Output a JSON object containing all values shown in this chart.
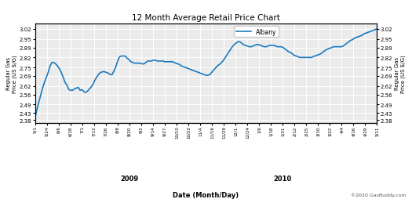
{
  "title": "12 Month Average Retail Price Chart",
  "ylabel_left": "Regular Gas\nPrice (US $/G)",
  "ylabel_right": "Regular Gas\nPrice (US $/G)",
  "xlabel": "Date (Month/Day)",
  "legend_label": "Albany",
  "watermark": "©2010 GasBuddy.com",
  "ylim": [
    2.36,
    3.06
  ],
  "yticks": [
    2.38,
    2.43,
    2.49,
    2.56,
    2.62,
    2.69,
    2.75,
    2.82,
    2.89,
    2.95,
    3.02
  ],
  "line_color": "#1a7abf",
  "bg_color": "#ffffff",
  "plot_bg_color": "#ebebeb",
  "grid_color": "#ffffff",
  "xtick_labels": [
    "5/1",
    "5/24",
    "6/6",
    "6/18",
    "7/1",
    "7/13",
    "7/26",
    "8/8",
    "8/20",
    "9/2",
    "9/14",
    "9/27",
    "10/10",
    "10/22",
    "11/4",
    "11/16",
    "11/29",
    "12/1",
    "12/24",
    "1/6",
    "1/18",
    "1/31",
    "2/12",
    "2/25",
    "3/10",
    "3/22",
    "4/4",
    "4/16",
    "4/29",
    "5/11"
  ],
  "x_year_labels": [
    [
      "2009",
      8
    ],
    [
      "2010",
      21
    ]
  ],
  "data_y": [
    2.395,
    2.455,
    2.505,
    2.555,
    2.605,
    2.645,
    2.68,
    2.715,
    2.76,
    2.785,
    2.785,
    2.775,
    2.76,
    2.74,
    2.715,
    2.68,
    2.645,
    2.625,
    2.595,
    2.59,
    2.59,
    2.6,
    2.605,
    2.61,
    2.59,
    2.595,
    2.58,
    2.575,
    2.585,
    2.6,
    2.615,
    2.635,
    2.665,
    2.685,
    2.705,
    2.715,
    2.72,
    2.72,
    2.715,
    2.71,
    2.7,
    2.7,
    2.725,
    2.755,
    2.795,
    2.825,
    2.83,
    2.83,
    2.83,
    2.815,
    2.805,
    2.79,
    2.785,
    2.78,
    2.78,
    2.78,
    2.78,
    2.775,
    2.775,
    2.785,
    2.795,
    2.795,
    2.795,
    2.8,
    2.8,
    2.795,
    2.795,
    2.795,
    2.795,
    2.79,
    2.79,
    2.79,
    2.79,
    2.79,
    2.785,
    2.78,
    2.775,
    2.77,
    2.76,
    2.755,
    2.75,
    2.745,
    2.74,
    2.735,
    2.73,
    2.725,
    2.72,
    2.715,
    2.71,
    2.705,
    2.7,
    2.695,
    2.695,
    2.7,
    2.715,
    2.73,
    2.745,
    2.76,
    2.77,
    2.78,
    2.795,
    2.815,
    2.835,
    2.855,
    2.875,
    2.895,
    2.91,
    2.92,
    2.93,
    2.93,
    2.92,
    2.91,
    2.905,
    2.9,
    2.895,
    2.895,
    2.9,
    2.905,
    2.91,
    2.91,
    2.905,
    2.9,
    2.895,
    2.895,
    2.9,
    2.905,
    2.905,
    2.905,
    2.9,
    2.895,
    2.895,
    2.895,
    2.89,
    2.88,
    2.87,
    2.86,
    2.855,
    2.845,
    2.835,
    2.83,
    2.825,
    2.82,
    2.82,
    2.82,
    2.82,
    2.82,
    2.82,
    2.82,
    2.825,
    2.83,
    2.835,
    2.84,
    2.845,
    2.855,
    2.865,
    2.875,
    2.88,
    2.885,
    2.89,
    2.895,
    2.895,
    2.895,
    2.895,
    2.895,
    2.9,
    2.91,
    2.92,
    2.93,
    2.94,
    2.945,
    2.955,
    2.96,
    2.965,
    2.97,
    2.975,
    2.985,
    2.99,
    2.995,
    3.0,
    3.005,
    3.01,
    3.015,
    3.02
  ],
  "line_width": 1.2
}
